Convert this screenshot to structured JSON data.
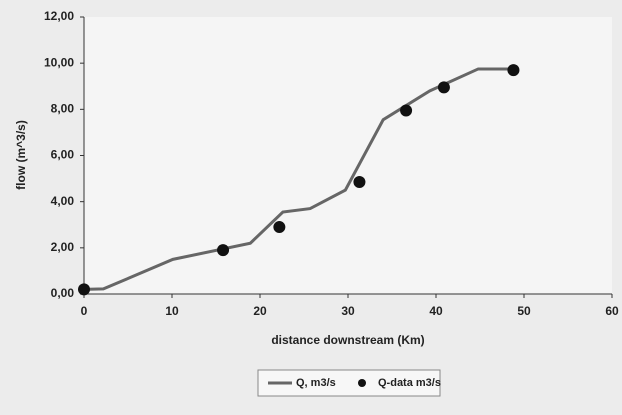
{
  "chart_data": {
    "type": "line",
    "xlabel": "distance downstream (Km)",
    "ylabel": "flow (m^3/s)",
    "xlim": [
      0,
      60
    ],
    "xticks": [
      0,
      10,
      20,
      30,
      40,
      50,
      60
    ],
    "ylim": [
      0,
      12
    ],
    "yticks": [
      {
        "value": 0,
        "label": "0,00"
      },
      {
        "value": 2,
        "label": "2,00"
      },
      {
        "value": 4,
        "label": "4,00"
      },
      {
        "value": 6,
        "label": "6,00"
      },
      {
        "value": 8,
        "label": "8,00"
      },
      {
        "value": 10,
        "label": "10,00"
      },
      {
        "value": 12,
        "label": "12,00"
      }
    ],
    "series": [
      {
        "name": "Q, m3/s",
        "color": "#666666",
        "kind": "line",
        "x": [
          0,
          2.2,
          10.1,
          18.9,
          22.6,
          25.7,
          29.7,
          34,
          39.3,
          44.8,
          49.4
        ],
        "values": [
          0.2,
          0.22,
          1.5,
          2.2,
          3.55,
          3.7,
          4.5,
          7.55,
          8.8,
          9.75,
          9.75
        ]
      },
      {
        "name": "Q-data m3/s",
        "color": "#111111",
        "kind": "scatter",
        "x": [
          0,
          15.8,
          22.2,
          31.3,
          36.6,
          40.9,
          48.8
        ],
        "values": [
          0.2,
          1.9,
          2.9,
          4.85,
          7.95,
          8.95,
          9.7
        ]
      }
    ],
    "legend": "bottom"
  }
}
